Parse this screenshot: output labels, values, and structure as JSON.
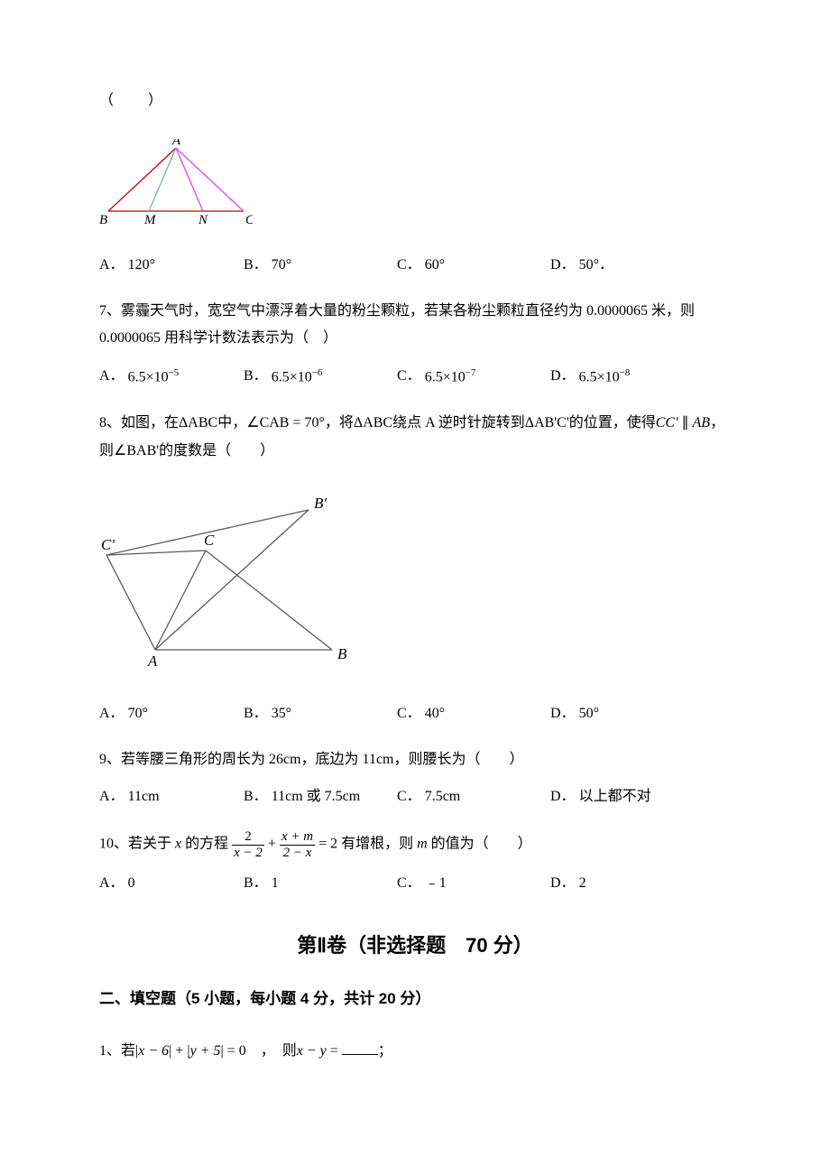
{
  "q6_prefix": "（　　）",
  "fig6": {
    "A": "A",
    "B": "B",
    "C": "C",
    "M": "M",
    "N": "N",
    "label_font": "italic 15px 'Times New Roman'",
    "line_color": "#c00000",
    "inner_color": "#6fa8dc",
    "tri_color": "#d946ef"
  },
  "q6_opts": {
    "A": "A．",
    "A_val": "120°",
    "B": "B．",
    "B_val": "70°",
    "C": "C．",
    "C_val": "60°",
    "D": "D．",
    "D_val": "50°．"
  },
  "q7": {
    "text": "7、雾霾天气时，宽空气中漂浮着大量的粉尘颗粒，若某各粉尘颗粒直径约为 0.0000065 米，则0.0000065 用科学计数法表示为（　）",
    "A": "A．",
    "A_val": "6.5×10",
    "A_exp": "−5",
    "B": "B．",
    "B_val": "6.5×10",
    "B_exp": "−6",
    "C": "C．",
    "C_val": "6.5×10",
    "C_exp": "−7",
    "D": "D．",
    "D_val": "6.5×10",
    "D_exp": "−8"
  },
  "q8": {
    "pre1": "8、如图，在",
    "tri1": "ΔABC",
    "mid1": "中，",
    "angle": "∠CAB = 70°",
    "mid2": "，将",
    "tri2": "ΔABC",
    "mid3": "绕点 A 逆时针旋转到",
    "tri3": "ΔAB'C'",
    "mid4": "的位置，使得",
    "cc": "CC'",
    "par": " ∥ ",
    "ab": "AB",
    "mid5": "，则",
    "bab": "∠BAB'",
    "tail": "的度数是（　　）",
    "A": "A．",
    "A_val": "70°",
    "B": "B．",
    "B_val": "35°",
    "C": "C．",
    "C_val": "40°",
    "D": "D．",
    "D_val": "50°"
  },
  "fig8": {
    "A": "A",
    "B": "B",
    "Bp": "B'",
    "C": "C",
    "Cp": "C'",
    "label_font": "italic 17px 'Times New Roman'",
    "stroke": "#5a5a5a"
  },
  "q9": {
    "text": "9、若等腰三角形的周长为 26cm，底边为 11cm，则腰长为（　　）",
    "A": "A．",
    "A_val": "11cm",
    "B": "B．",
    "B_val": "11cm 或 7.5cm",
    "C": "C．",
    "C_val": "7.5cm",
    "D": "D．",
    "D_val": "以上都不对"
  },
  "q10": {
    "pre": "10、若关于 ",
    "x": "x",
    "mid1": " 的方程 ",
    "f1n": "2",
    "f1d": "x − 2",
    "plus": " + ",
    "f2n": "x + m",
    "f2d": "2 − x",
    "eq": " = 2 有增根，则 ",
    "m": "m",
    "tail": " 的值为（　　）",
    "A": "A．",
    "A_val": "0",
    "B": "B．",
    "B_val": "1",
    "C": "C．",
    "C_val": "﹣1",
    "D": "D．",
    "D_val": "2"
  },
  "section2": "第Ⅱ卷（非选择题　70 分）",
  "fill_header": "二、填空题（5 小题，每小题 4 分，共计 20 分）",
  "f1": {
    "pre": "1、若",
    "abs1a": "|",
    "abs1b": "x − 6",
    "abs1c": "|",
    "plus": " + ",
    "abs2a": "|",
    "abs2b": "y + 5",
    "abs2c": "|",
    "eq": " = 0　，　则",
    "xy": "x − y",
    "equals": " = ",
    "semi": "；"
  },
  "layout": {
    "opt_col1": "0",
    "opt_col2": "160",
    "opt_col3": "330",
    "opt_col4": "500"
  }
}
